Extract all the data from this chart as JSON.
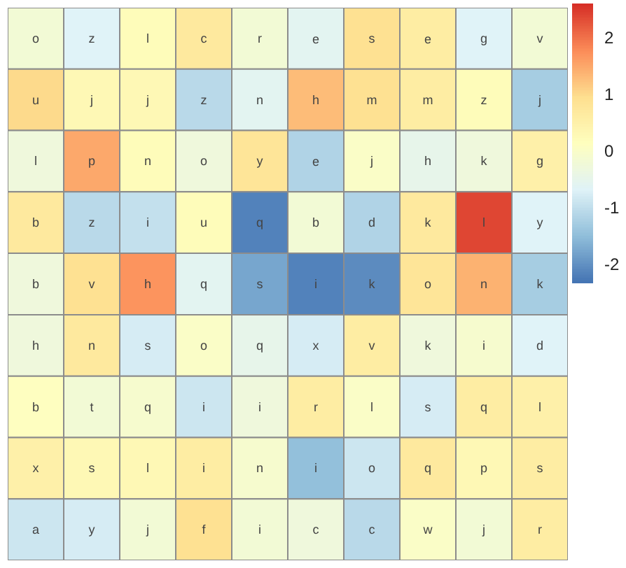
{
  "chart_data": {
    "type": "heatmap",
    "categories": [
      null,
      null,
      null,
      null,
      null,
      null,
      null,
      null,
      null,
      null
    ],
    "y_categories": [
      null,
      null,
      null,
      null,
      null,
      null,
      null,
      null,
      null
    ],
    "cells": [
      [
        -0.2,
        -0.7,
        0.2,
        0.7,
        -0.2,
        -0.6,
        0.9,
        0.6,
        -0.7,
        -0.2
      ],
      [
        1.0,
        0.3,
        0.3,
        -1.1,
        -0.6,
        1.3,
        0.9,
        0.6,
        0.2,
        -1.3
      ],
      [
        -0.3,
        1.5,
        0.2,
        -0.3,
        0.8,
        -1.2,
        0.0,
        -0.5,
        -0.3,
        0.5
      ],
      [
        0.7,
        -1.1,
        -1.0,
        0.2,
        -2.2,
        -0.2,
        -1.2,
        0.7,
        2.4,
        -0.7
      ],
      [
        -0.3,
        0.9,
        1.7,
        -0.6,
        -1.8,
        -2.2,
        -2.1,
        0.8,
        1.4,
        -1.3
      ],
      [
        -0.3,
        0.7,
        -0.8,
        0.0,
        -0.5,
        -0.8,
        0.6,
        -0.3,
        -0.1,
        -0.7
      ],
      [
        0.1,
        -0.2,
        -0.1,
        -0.9,
        -0.3,
        0.6,
        0.0,
        -0.8,
        0.6,
        0.5
      ],
      [
        0.5,
        0.3,
        0.3,
        0.6,
        -0.1,
        -1.5,
        -0.9,
        0.7,
        0.3,
        0.6
      ],
      [
        -0.9,
        -0.8,
        -0.2,
        0.9,
        -0.2,
        -0.3,
        -1.1,
        0.0,
        -0.2,
        0.6
      ]
    ],
    "cell_labels": [
      [
        "o",
        "z",
        "l",
        "c",
        "r",
        "e",
        "s",
        "e",
        "g",
        "v"
      ],
      [
        "u",
        "j",
        "j",
        "z",
        "n",
        "h",
        "m",
        "m",
        "z",
        "j"
      ],
      [
        "l",
        "p",
        "n",
        "o",
        "y",
        "e",
        "j",
        "h",
        "k",
        "g"
      ],
      [
        "b",
        "z",
        "i",
        "u",
        "q",
        "b",
        "d",
        "k",
        "l",
        "y"
      ],
      [
        "b",
        "v",
        "h",
        "q",
        "s",
        "i",
        "k",
        "o",
        "n",
        "k"
      ],
      [
        "h",
        "n",
        "s",
        "o",
        "q",
        "x",
        "v",
        "k",
        "i",
        "d"
      ],
      [
        "b",
        "t",
        "q",
        "i",
        "i",
        "r",
        "l",
        "s",
        "q",
        "l"
      ],
      [
        "x",
        "s",
        "l",
        "i",
        "n",
        "i",
        "o",
        "q",
        "p",
        "s"
      ],
      [
        "a",
        "y",
        "j",
        "f",
        "i",
        "c",
        "c",
        "w",
        "j",
        "r"
      ]
    ],
    "clim": [
      -2.35,
      2.6
    ],
    "cticks": [
      -2,
      -1,
      0,
      1,
      2
    ]
  }
}
